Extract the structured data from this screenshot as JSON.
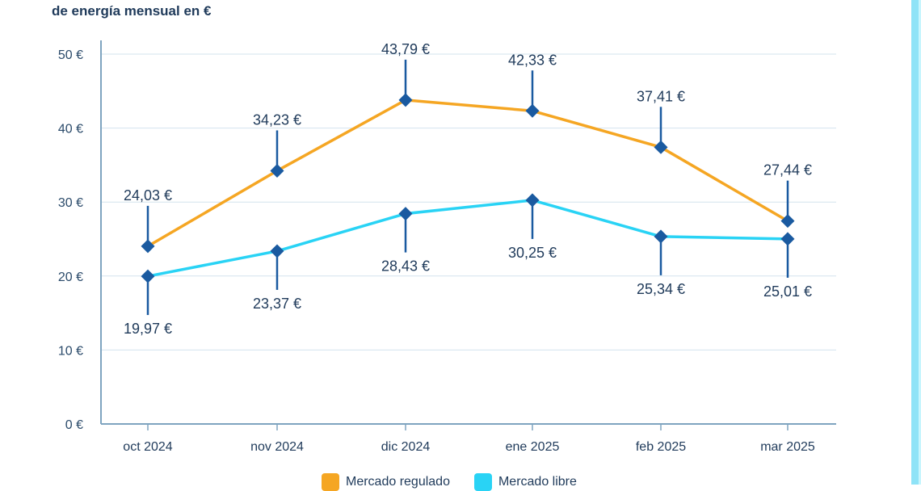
{
  "chart_data": {
    "type": "line",
    "title": "de energía mensual en €",
    "categories": [
      "oct 2024",
      "nov 2024",
      "dic 2024",
      "ene 2025",
      "feb 2025",
      "mar 2025"
    ],
    "ylim": [
      0,
      50
    ],
    "yticks": [
      0,
      10,
      20,
      30,
      40,
      50
    ],
    "ytick_labels": [
      "0 €",
      "10 €",
      "20 €",
      "30 €",
      "40 €",
      "50 €"
    ],
    "grid": true,
    "legend_position": "bottom",
    "series": [
      {
        "name": "Mercado regulado",
        "color": "#f5a623",
        "values": [
          24.03,
          34.23,
          43.79,
          42.33,
          37.41,
          27.44
        ],
        "labels": [
          "24,03 €",
          "34,23 €",
          "43,79 €",
          "42,33 €",
          "37,41 €",
          "27,44 €"
        ],
        "label_side": "above"
      },
      {
        "name": "Mercado libre",
        "color": "#29d3f5",
        "values": [
          19.97,
          23.37,
          28.43,
          30.25,
          25.34,
          25.01
        ],
        "labels": [
          "19,97 €",
          "23,37 €",
          "28,43 €",
          "30,25 €",
          "25,34 €",
          "25,01 €"
        ],
        "label_side": "below"
      }
    ],
    "marker_color": "#1a5aa0"
  }
}
